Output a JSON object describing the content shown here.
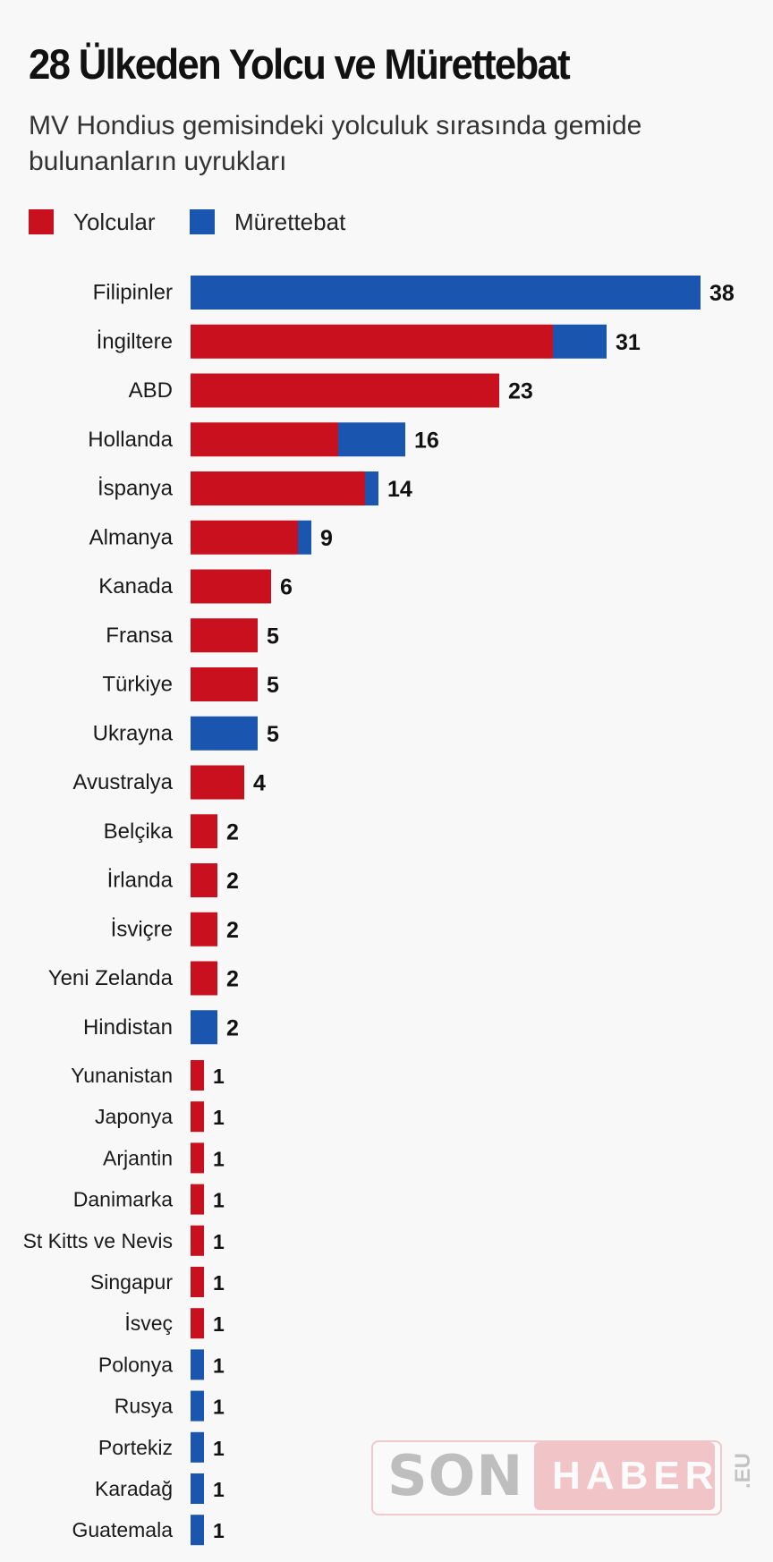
{
  "title": "28 Ülkeden Yolcu ve Mürettebat",
  "subtitle": "MV Hondius gemisindeki yolculuk sırasında gemide bulunanların uyrukları",
  "colors": {
    "passengers": "#c8101e",
    "crew": "#1a55b0"
  },
  "watermark": {
    "son": "SON",
    "haber": "HABER",
    "eu": ".EU"
  },
  "chart_data": {
    "type": "bar",
    "orientation": "horizontal",
    "stacked": true,
    "legend": "top-left",
    "xlim": [
      0,
      38
    ],
    "categories": [
      "Filipinler",
      "İngiltere",
      "ABD",
      "Hollanda",
      "İspanya",
      "Almanya",
      "Kanada",
      "Fransa",
      "Türkiye",
      "Ukrayna",
      "Avustralya",
      "Belçika",
      "İrlanda",
      "İsviçre",
      "Yeni Zelanda",
      "Hindistan",
      "Yunanistan",
      "Japonya",
      "Arjantin",
      "Danimarka",
      "St Kitts ve Nevis",
      "Singapur",
      "İsveç",
      "Polonya",
      "Rusya",
      "Portekiz",
      "Karadağ",
      "Guatemala"
    ],
    "series": [
      {
        "name": "Yolcular",
        "color": "#c8101e",
        "values": [
          0,
          27,
          23,
          11,
          13,
          8,
          6,
          5,
          5,
          0,
          4,
          2,
          2,
          2,
          2,
          0,
          1,
          1,
          1,
          1,
          1,
          1,
          1,
          0,
          0,
          0,
          0,
          0
        ]
      },
      {
        "name": "Mürettebat",
        "color": "#1a55b0",
        "values": [
          38,
          4,
          0,
          5,
          1,
          1,
          0,
          0,
          0,
          5,
          0,
          0,
          0,
          0,
          0,
          2,
          0,
          0,
          0,
          0,
          0,
          0,
          0,
          1,
          1,
          1,
          1,
          1
        ]
      }
    ],
    "totals": [
      38,
      31,
      23,
      16,
      14,
      9,
      6,
      5,
      5,
      5,
      4,
      2,
      2,
      2,
      2,
      2,
      1,
      1,
      1,
      1,
      1,
      1,
      1,
      1,
      1,
      1,
      1,
      1
    ]
  }
}
